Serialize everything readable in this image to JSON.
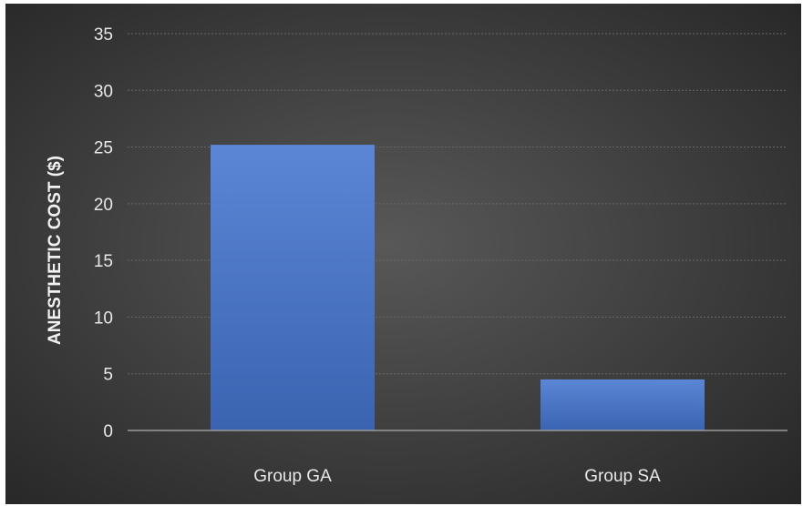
{
  "chart_data": {
    "type": "bar",
    "title": "",
    "xlabel": "",
    "ylabel": "ANESTHETIC COST ($)",
    "categories": [
      "Group GA",
      "Group SA"
    ],
    "values": [
      25.2,
      4.5
    ],
    "ylim": [
      0,
      35
    ],
    "yticks": [
      0,
      5,
      10,
      15,
      20,
      25,
      30,
      35
    ],
    "ytick_labels": [
      "0",
      "5",
      "10",
      "15",
      "20",
      "25",
      "30",
      "35"
    ],
    "grid": true,
    "legend": "none",
    "colors": {
      "bar": "#4472C4",
      "bar_top": "#5B86D6",
      "bar_bottom": "#3A64B0",
      "background_center": "#585858",
      "background_edge": "#262626",
      "text": "#e8e8e8"
    }
  }
}
